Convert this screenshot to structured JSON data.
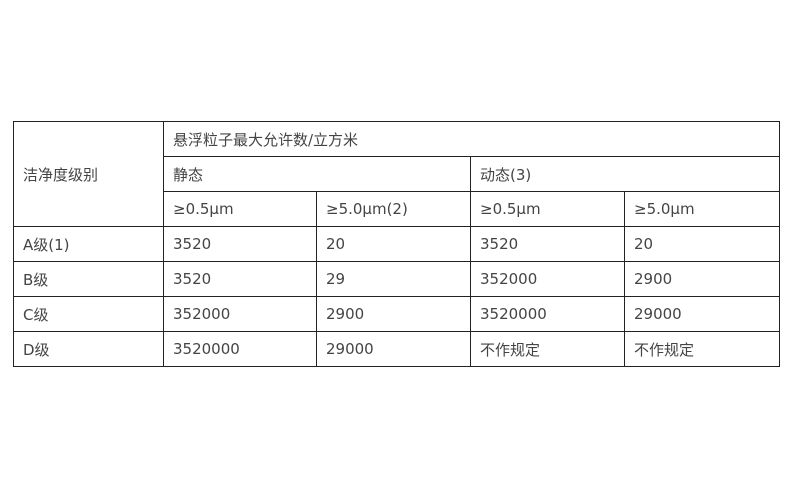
{
  "table": {
    "row_header": "洁净度级别",
    "group_header": "悬浮粒子最大允许数/立方米",
    "static_label": "静态",
    "dynamic_label": "动态(3)",
    "subheaders": [
      "≥0.5μm",
      "≥5.0μm(2)",
      "≥0.5μm",
      "≥5.0μm"
    ],
    "rows": [
      {
        "grade": "A级(1)",
        "values": [
          "3520",
          "20",
          "3520",
          "20"
        ]
      },
      {
        "grade": "B级",
        "values": [
          "3520",
          "29",
          "352000",
          "2900"
        ]
      },
      {
        "grade": "C级",
        "values": [
          "352000",
          "2900",
          "3520000",
          "29000"
        ]
      },
      {
        "grade": "D级",
        "values": [
          "3520000",
          "29000",
          "不作规定",
          "不作规定"
        ]
      }
    ]
  }
}
